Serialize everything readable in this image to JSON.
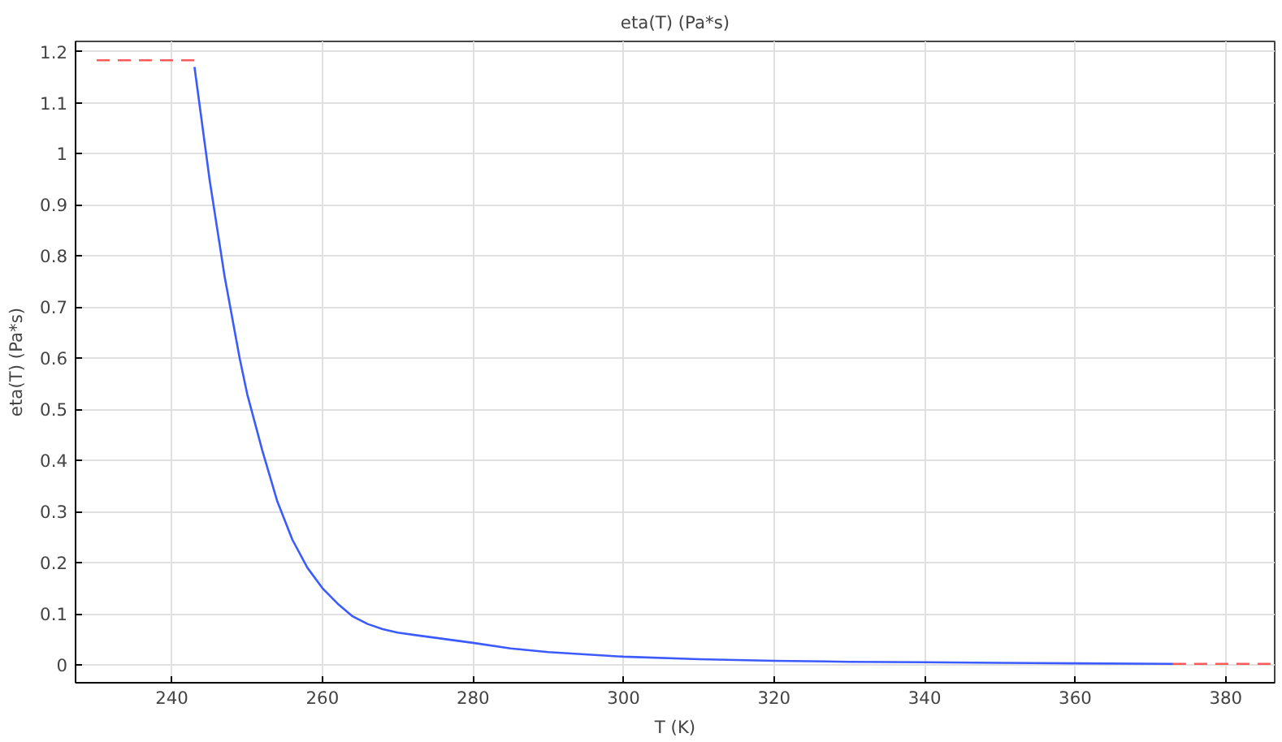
{
  "chart_data": {
    "type": "line",
    "title": "eta(T) (Pa*s)",
    "xlabel": "T (K)",
    "ylabel": "eta(T) (Pa*s)",
    "xlim": [
      227.2,
      386.5
    ],
    "ylim": [
      -0.035,
      1.22
    ],
    "xticks": [
      240,
      260,
      280,
      300,
      320,
      340,
      360,
      380
    ],
    "yticks": [
      0,
      {
        "value": 0.1,
        "label": "0.1"
      },
      {
        "value": 0.2,
        "label": "0.2"
      },
      {
        "value": 0.3,
        "label": "0.3"
      },
      {
        "value": 0.4,
        "label": "0.4"
      },
      {
        "value": 0.5,
        "label": "0.5"
      },
      {
        "value": 0.6,
        "label": "0.6"
      },
      {
        "value": 0.7,
        "label": "0.7"
      },
      {
        "value": 0.8,
        "label": "0.8"
      },
      {
        "value": 0.9,
        "label": "0.9"
      },
      1,
      {
        "value": 1.1,
        "label": "1.1"
      },
      {
        "value": 1.2,
        "label": "1.2"
      }
    ],
    "grid": true,
    "series": [
      {
        "color": "#ff5a5a",
        "line_style": "dashed",
        "x": [
          230,
          243
        ],
        "values": [
          1.183,
          1.183
        ]
      },
      {
        "color": "#3b5bff",
        "line_style": "solid",
        "x": [
          243,
          245,
          247,
          249,
          250,
          252,
          254,
          256,
          258,
          260,
          262,
          264,
          266,
          268,
          270,
          275,
          280,
          285,
          290,
          300,
          310,
          320,
          330,
          340,
          350,
          360,
          373
        ],
        "values": [
          1.17,
          0.95,
          0.76,
          0.6,
          0.53,
          0.42,
          0.32,
          0.245,
          0.19,
          0.15,
          0.12,
          0.095,
          0.08,
          0.07,
          0.063,
          0.053,
          0.043,
          0.032,
          0.025,
          0.016,
          0.011,
          0.008,
          0.006,
          0.005,
          0.004,
          0.003,
          0.002
        ]
      },
      {
        "color": "#ff5a5a",
        "line_style": "dashed",
        "x": [
          373,
          386
        ],
        "values": [
          0.002,
          0.002
        ]
      }
    ]
  }
}
